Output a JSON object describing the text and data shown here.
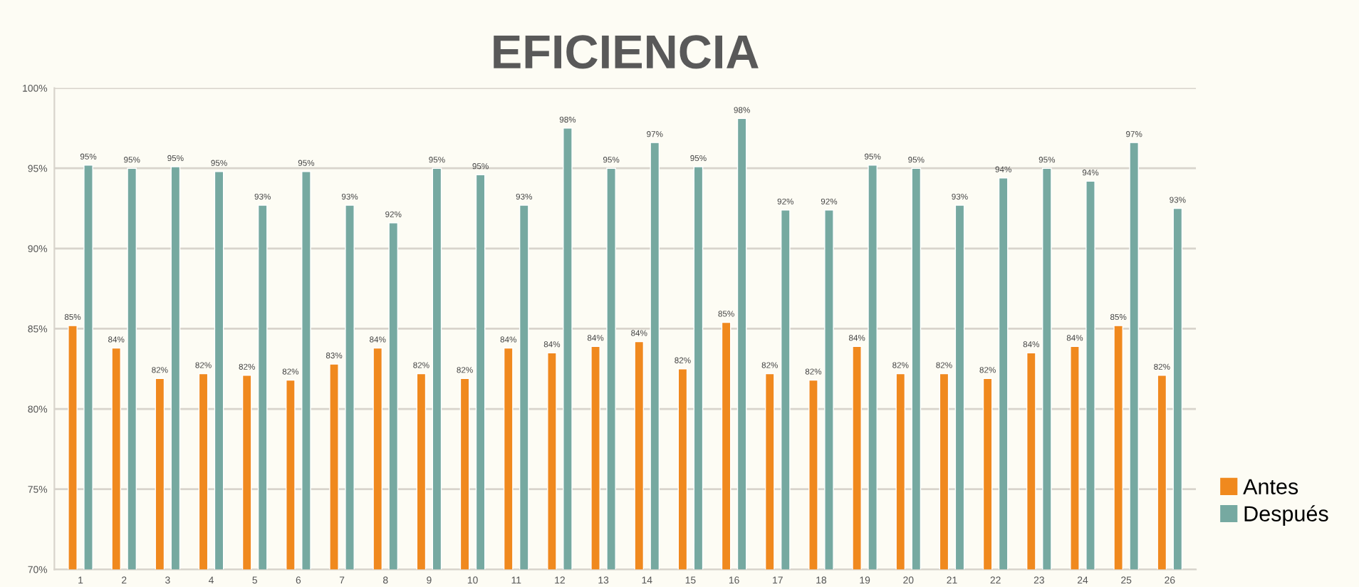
{
  "chart_data": {
    "type": "bar",
    "title": "EFICIENCIA",
    "categories": [
      "1",
      "2",
      "3",
      "4",
      "5",
      "6",
      "7",
      "8",
      "9",
      "10",
      "11",
      "12",
      "13",
      "14",
      "15",
      "16",
      "17",
      "18",
      "19",
      "20",
      "21",
      "22",
      "23",
      "24",
      "25",
      "26"
    ],
    "series": [
      {
        "name": "Antes",
        "color": "#f0891e",
        "values": [
          85.2,
          83.8,
          81.9,
          82.2,
          82.1,
          81.8,
          82.8,
          83.8,
          82.2,
          81.9,
          83.8,
          83.5,
          83.9,
          84.2,
          82.5,
          85.4,
          82.2,
          81.8,
          83.9,
          82.2,
          82.2,
          81.9,
          83.5,
          83.9,
          85.2,
          82.1
        ],
        "value_labels": [
          "85%",
          "84%",
          "82%",
          "82%",
          "82%",
          "82%",
          "83%",
          "84%",
          "82%",
          "82%",
          "84%",
          "84%",
          "84%",
          "84%",
          "82%",
          "85%",
          "82%",
          "82%",
          "84%",
          "82%",
          "82%",
          "82%",
          "84%",
          "84%",
          "85%",
          "82%"
        ]
      },
      {
        "name": "Después",
        "color": "#76a9a1",
        "values": [
          95.2,
          95.0,
          95.1,
          94.8,
          92.7,
          94.8,
          92.7,
          91.6,
          95.0,
          94.6,
          92.7,
          97.5,
          95.0,
          96.6,
          95.1,
          98.1,
          92.4,
          92.4,
          95.2,
          95.0,
          92.7,
          94.4,
          95.0,
          94.2,
          96.6,
          92.5
        ],
        "value_labels": [
          "95%",
          "95%",
          "95%",
          "95%",
          "93%",
          "95%",
          "93%",
          "92%",
          "95%",
          "95%",
          "93%",
          "98%",
          "95%",
          "97%",
          "95%",
          "98%",
          "92%",
          "92%",
          "95%",
          "95%",
          "93%",
          "94%",
          "95%",
          "94%",
          "97%",
          "93%"
        ]
      }
    ],
    "ylim": [
      70,
      100
    ],
    "yticks": [
      {
        "value": 70,
        "label": "70%"
      },
      {
        "value": 75,
        "label": "75%"
      },
      {
        "value": 80,
        "label": "80%"
      },
      {
        "value": 85,
        "label": "85%"
      },
      {
        "value": 90,
        "label": "90%"
      },
      {
        "value": 95,
        "label": "95%"
      },
      {
        "value": 100,
        "label": "100%"
      }
    ],
    "grid": "y",
    "legend": "right"
  }
}
